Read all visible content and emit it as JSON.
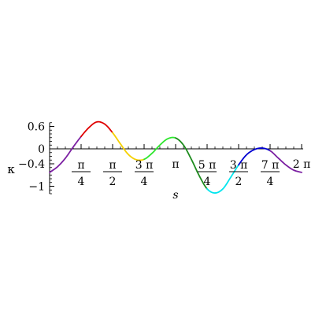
{
  "chart_data": {
    "type": "line",
    "title": "",
    "xlabel": "s",
    "ylabel": "κ",
    "xlim": [
      0,
      6.2832
    ],
    "ylim": [
      -1.2,
      0.7
    ],
    "grid": false,
    "legend": "none",
    "y_ticks": [
      {
        "value": 0.6,
        "label": "0.6"
      },
      {
        "value": 0,
        "label": "0"
      },
      {
        "value": -0.4,
        "label": "−0.4"
      },
      {
        "value": -1,
        "label": "−1"
      }
    ],
    "x_ticks": [
      {
        "value": 0.7854,
        "num": "π",
        "den": "4"
      },
      {
        "value": 1.5708,
        "num": "π",
        "den": "2"
      },
      {
        "value": 2.3562,
        "num": "3 π",
        "den": "4"
      },
      {
        "value": 3.1416,
        "label": "π"
      },
      {
        "value": 3.927,
        "num": "5 π",
        "den": "4"
      },
      {
        "value": 4.7124,
        "num": "3 π",
        "den": "2"
      },
      {
        "value": 5.4978,
        "num": "7 π",
        "den": "4"
      },
      {
        "value": 6.2832,
        "label": "2 π"
      }
    ],
    "series": [
      {
        "colors": [
          "#7b1fa2",
          "#e00000",
          "#f5d000",
          "#2ee62e",
          "#1e8c1e",
          "#00e5ee",
          "#0000d0",
          "#7b1fa2"
        ],
        "x": [
          0,
          0.196,
          0.393,
          0.589,
          0.785,
          0.982,
          1.178,
          1.375,
          1.571,
          1.767,
          1.963,
          2.16,
          2.356,
          2.553,
          2.749,
          2.945,
          3.142,
          3.338,
          3.534,
          3.731,
          3.927,
          4.123,
          4.32,
          4.516,
          4.712,
          4.909,
          5.105,
          5.301,
          5.498,
          5.694,
          5.89,
          6.087,
          6.283
        ],
        "y": [
          -0.63,
          -0.48,
          -0.25,
          0.05,
          0.33,
          0.57,
          0.72,
          0.66,
          0.43,
          0.13,
          -0.15,
          -0.29,
          -0.28,
          -0.12,
          0.1,
          0.27,
          0.29,
          0.1,
          -0.28,
          -0.72,
          -1.07,
          -1.18,
          -1.07,
          -0.76,
          -0.43,
          -0.16,
          -0.02,
          0.02,
          -0.05,
          -0.24,
          -0.43,
          -0.57,
          -0.63
        ]
      }
    ]
  }
}
